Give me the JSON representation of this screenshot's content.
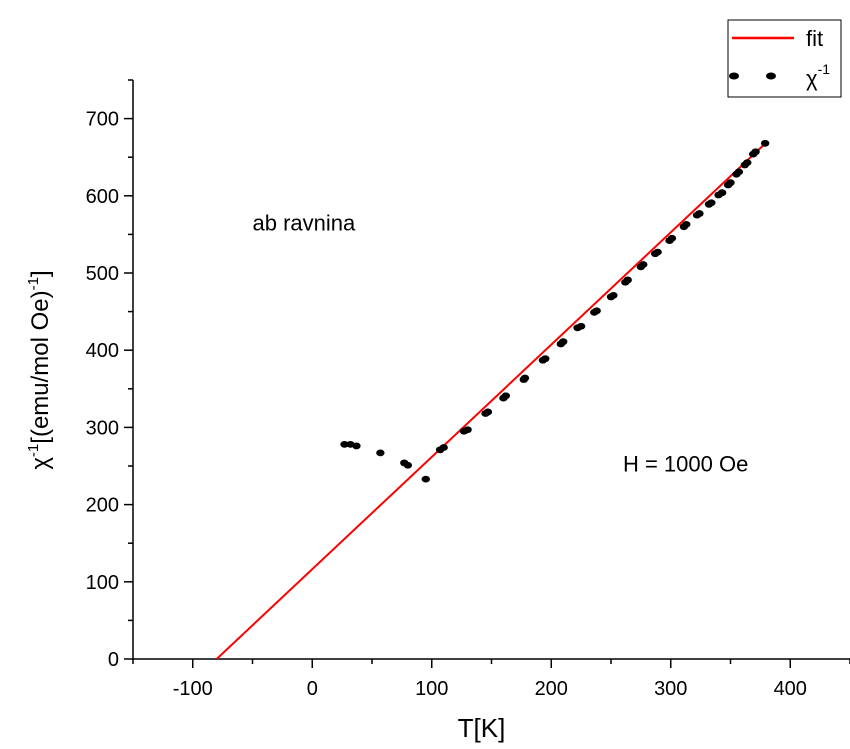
{
  "chart_data": {
    "type": "scatter",
    "title": "",
    "xlabel": "T[K]",
    "ylabel_main": "χ",
    "ylabel_sup": "-1",
    "ylabel_rest": "[(emu/mol Oe)",
    "ylabel_end_sup": "-1",
    "ylabel_close": "]",
    "xlim": [
      -150,
      450
    ],
    "ylim": [
      0,
      750
    ],
    "x_ticks": [
      -100,
      0,
      100,
      200,
      300,
      400
    ],
    "y_ticks": [
      0,
      100,
      200,
      300,
      400,
      500,
      600,
      700
    ],
    "annotations": [
      {
        "text": "ab ravnina",
        "x": -50,
        "y": 555
      },
      {
        "text": "H = 1000 Oe",
        "x": 260,
        "y": 243
      }
    ],
    "legend": {
      "position": "top-right",
      "fit_label": "fit",
      "data_label": "χ",
      "data_label_sup": "-1"
    },
    "series": [
      {
        "name": "fit",
        "style": "line",
        "color": "#ff0000",
        "x": [
          -80,
          380
        ],
        "y": [
          0,
          669
        ]
      },
      {
        "name": "χ-1",
        "style": "dashed-dots",
        "color": "#000000",
        "x": [
          27,
          32,
          37,
          57,
          77,
          80,
          95,
          107,
          110,
          127,
          130,
          145,
          147,
          160,
          162,
          177,
          178,
          193,
          195,
          208,
          210,
          222,
          225,
          236,
          238,
          250,
          252,
          262,
          264,
          275,
          277,
          287,
          289,
          299,
          301,
          311,
          313,
          322,
          324,
          332,
          334,
          340,
          343,
          348,
          350,
          355,
          357,
          362,
          364,
          369,
          371,
          379
        ],
        "y": [
          278,
          278,
          276,
          267,
          254,
          251,
          233,
          271,
          274,
          295,
          297,
          318,
          320,
          338,
          341,
          362,
          364,
          387,
          389,
          408,
          411,
          429,
          431,
          449,
          451,
          469,
          471,
          488,
          491,
          508,
          511,
          525,
          527,
          542,
          545,
          560,
          563,
          575,
          577,
          589,
          591,
          601,
          604,
          614,
          617,
          628,
          631,
          640,
          643,
          654,
          657,
          668
        ]
      }
    ]
  }
}
